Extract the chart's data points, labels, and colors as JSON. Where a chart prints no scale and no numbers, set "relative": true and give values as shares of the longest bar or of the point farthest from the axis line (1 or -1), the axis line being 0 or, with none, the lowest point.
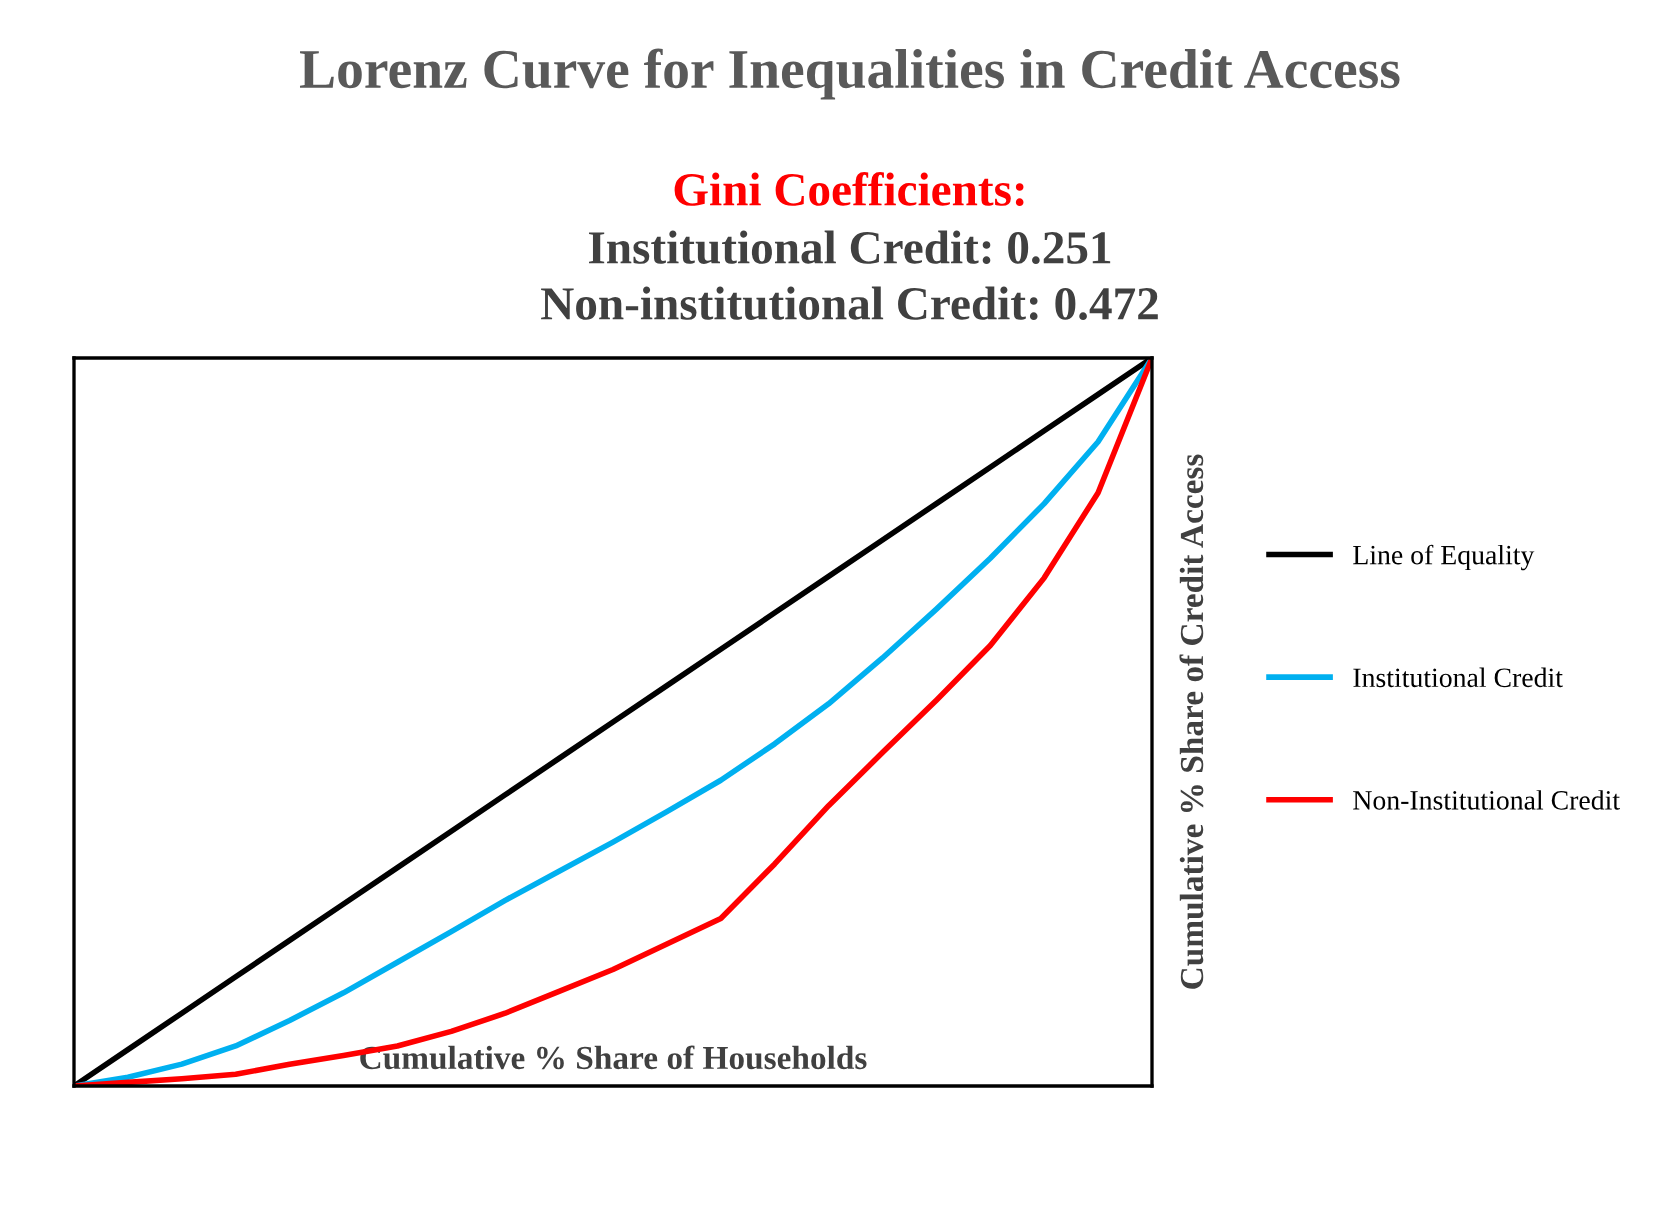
{
  "chart_data": {
    "type": "line",
    "title": "Lorenz Curve for Inequalities in Credit Access",
    "subtitle": "Gini Coefficients:",
    "annotations": [
      "Institutional Credit: 0.251",
      "Non-institutional Credit: 0.472"
    ],
    "xlabel": "Cumulative % Share of Households",
    "ylabel": "Cumulative % Share of Credit Access",
    "relative": true,
    "categories": [
      null,
      null,
      null,
      null,
      null,
      null,
      null,
      null,
      null,
      null,
      null,
      null,
      null,
      null,
      null,
      null,
      null,
      null,
      null,
      null,
      null
    ],
    "legend": "right",
    "grid": false,
    "marker": "none",
    "series": [
      {
        "name": "Line of Equality",
        "color": "#000000",
        "values": [
          0,
          0.05,
          0.1,
          0.15,
          0.2,
          0.25,
          0.3,
          0.35,
          0.4,
          0.45,
          0.5,
          0.55,
          0.6,
          0.65,
          0.7,
          0.75,
          0.8,
          0.85,
          0.9,
          0.95,
          1
        ]
      },
      {
        "name": "Institutional Credit",
        "color": "#00b0f0",
        "values": [
          0,
          0.012,
          0.03,
          0.055,
          0.09,
          0.128,
          0.17,
          0.212,
          0.255,
          0.295,
          0.335,
          0.377,
          0.42,
          0.47,
          0.525,
          0.588,
          0.655,
          0.725,
          0.8,
          0.885,
          1
        ]
      },
      {
        "name": "Non-Institutional Credit",
        "color": "#ff0000",
        "values": [
          0,
          0.005,
          0.01,
          0.016,
          0.03,
          0.042,
          0.055,
          0.075,
          0.1,
          0.13,
          0.16,
          0.195,
          0.23,
          0.305,
          0.385,
          0.458,
          0.53,
          0.605,
          0.698,
          0.815,
          1
        ]
      }
    ]
  }
}
